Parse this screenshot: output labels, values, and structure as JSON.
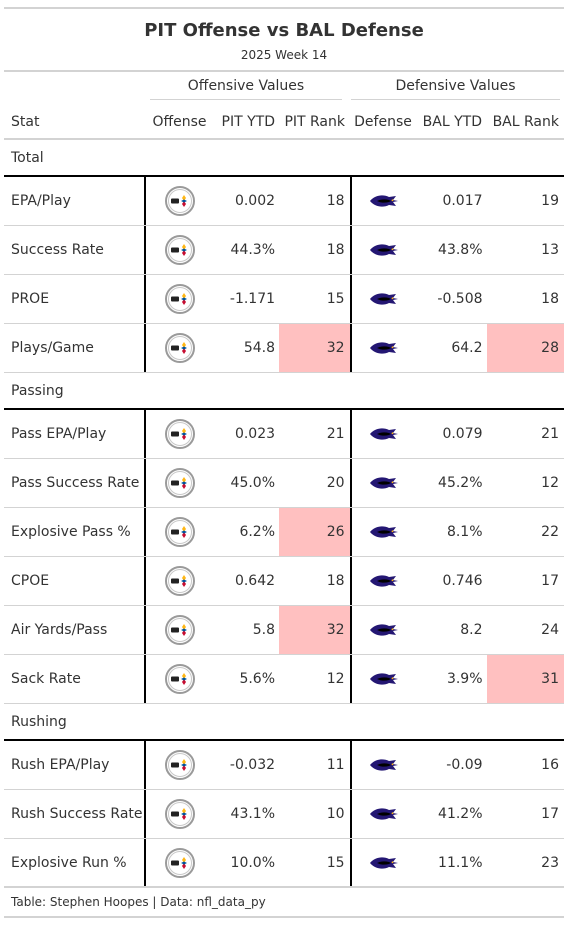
{
  "title": "PIT Offense vs BAL Defense",
  "subtitle": "2025 Week 14",
  "spanners": {
    "offense": "Offensive Values",
    "defense": "Defensive Values"
  },
  "columns": {
    "stat": "Stat",
    "offense": "Offense",
    "pit_ytd": "PIT YTD",
    "pit_rank": "PIT Rank",
    "defense": "Defense",
    "bal_ytd": "BAL YTD",
    "bal_rank": "BAL Rank"
  },
  "colors": {
    "highlight": "#ffc0c0",
    "ravens_purple": "#241773",
    "steelers_gold": "#ffb612"
  },
  "icons": {
    "offense": "steelers-logo-icon",
    "defense": "ravens-logo-icon"
  },
  "groups": [
    {
      "name": "Total",
      "rows": [
        {
          "stat": "EPA/Play",
          "pit_ytd": "0.002",
          "pit_rank": "18",
          "bal_ytd": "0.017",
          "bal_rank": "19",
          "pit_hl": false,
          "bal_hl": false
        },
        {
          "stat": "Success Rate",
          "pit_ytd": "44.3%",
          "pit_rank": "18",
          "bal_ytd": "43.8%",
          "bal_rank": "13",
          "pit_hl": false,
          "bal_hl": false
        },
        {
          "stat": "PROE",
          "pit_ytd": "-1.171",
          "pit_rank": "15",
          "bal_ytd": "-0.508",
          "bal_rank": "18",
          "pit_hl": false,
          "bal_hl": false
        },
        {
          "stat": "Plays/Game",
          "pit_ytd": "54.8",
          "pit_rank": "32",
          "bal_ytd": "64.2",
          "bal_rank": "28",
          "pit_hl": true,
          "bal_hl": true
        }
      ]
    },
    {
      "name": "Passing",
      "rows": [
        {
          "stat": "Pass EPA/Play",
          "pit_ytd": "0.023",
          "pit_rank": "21",
          "bal_ytd": "0.079",
          "bal_rank": "21",
          "pit_hl": false,
          "bal_hl": false
        },
        {
          "stat": "Pass Success Rate",
          "pit_ytd": "45.0%",
          "pit_rank": "20",
          "bal_ytd": "45.2%",
          "bal_rank": "12",
          "pit_hl": false,
          "bal_hl": false
        },
        {
          "stat": "Explosive Pass %",
          "pit_ytd": "6.2%",
          "pit_rank": "26",
          "bal_ytd": "8.1%",
          "bal_rank": "22",
          "pit_hl": true,
          "bal_hl": false
        },
        {
          "stat": "CPOE",
          "pit_ytd": "0.642",
          "pit_rank": "18",
          "bal_ytd": "0.746",
          "bal_rank": "17",
          "pit_hl": false,
          "bal_hl": false
        },
        {
          "stat": "Air Yards/Pass",
          "pit_ytd": "5.8",
          "pit_rank": "32",
          "bal_ytd": "8.2",
          "bal_rank": "24",
          "pit_hl": true,
          "bal_hl": false
        },
        {
          "stat": "Sack Rate",
          "pit_ytd": "5.6%",
          "pit_rank": "12",
          "bal_ytd": "3.9%",
          "bal_rank": "31",
          "pit_hl": false,
          "bal_hl": true
        }
      ]
    },
    {
      "name": "Rushing",
      "rows": [
        {
          "stat": "Rush EPA/Play",
          "pit_ytd": "-0.032",
          "pit_rank": "11",
          "bal_ytd": "-0.09",
          "bal_rank": "16",
          "pit_hl": false,
          "bal_hl": false
        },
        {
          "stat": "Rush Success Rate",
          "pit_ytd": "43.1%",
          "pit_rank": "10",
          "bal_ytd": "41.2%",
          "bal_rank": "17",
          "pit_hl": false,
          "bal_hl": false
        },
        {
          "stat": "Explosive Run %",
          "pit_ytd": "10.0%",
          "pit_rank": "15",
          "bal_ytd": "11.1%",
          "bal_rank": "23",
          "pit_hl": false,
          "bal_hl": false
        }
      ]
    }
  ],
  "footer": "Table: Stephen Hoopes | Data: nfl_data_py"
}
